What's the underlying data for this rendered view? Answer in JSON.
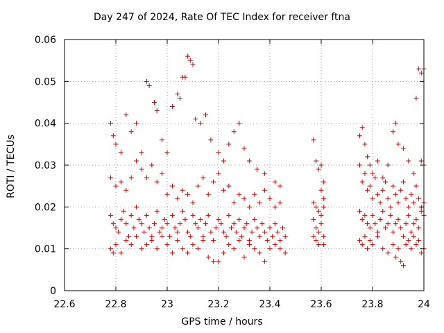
{
  "chart_data": {
    "type": "scatter",
    "title": "Day 247 of 2024, Rate Of TEC Index for receiver ftna",
    "xlabel": "GPS time / hours",
    "ylabel": "ROTI / TECUs",
    "xlim": [
      22.6,
      24.0
    ],
    "ylim": [
      0,
      0.06
    ],
    "xticks": [
      "22.6",
      "22.8",
      "23",
      "23.2",
      "23.4",
      "23.6",
      "23.8",
      "24"
    ],
    "yticks": [
      "0",
      "0.01",
      "0.02",
      "0.03",
      "0.04",
      "0.05",
      "0.06"
    ],
    "grid": true,
    "marker": "+",
    "color": "#cc0000",
    "series": [
      {
        "name": "",
        "points": [
          [
            22.78,
            0.04
          ],
          [
            22.79,
            0.037
          ],
          [
            22.8,
            0.035
          ],
          [
            22.82,
            0.033
          ],
          [
            22.84,
            0.042
          ],
          [
            22.86,
            0.038
          ],
          [
            22.88,
            0.04
          ],
          [
            22.9,
            0.033
          ],
          [
            22.92,
            0.05
          ],
          [
            22.93,
            0.049
          ],
          [
            22.95,
            0.045
          ],
          [
            22.96,
            0.043
          ],
          [
            22.98,
            0.036
          ],
          [
            23.0,
            0.033
          ],
          [
            23.02,
            0.044
          ],
          [
            23.04,
            0.047
          ],
          [
            23.05,
            0.046
          ],
          [
            23.06,
            0.051
          ],
          [
            23.07,
            0.051
          ],
          [
            23.08,
            0.056
          ],
          [
            23.09,
            0.055
          ],
          [
            23.1,
            0.054
          ],
          [
            23.11,
            0.041
          ],
          [
            23.13,
            0.04
          ],
          [
            23.15,
            0.042
          ],
          [
            23.17,
            0.036
          ],
          [
            23.2,
            0.033
          ],
          [
            23.22,
            0.031
          ],
          [
            23.24,
            0.035
          ],
          [
            23.26,
            0.038
          ],
          [
            23.28,
            0.04
          ],
          [
            23.3,
            0.034
          ],
          [
            23.32,
            0.031
          ],
          [
            23.35,
            0.029
          ],
          [
            23.38,
            0.028
          ],
          [
            23.42,
            0.026
          ],
          [
            23.44,
            0.025
          ],
          [
            22.78,
            0.027
          ],
          [
            22.8,
            0.025
          ],
          [
            22.82,
            0.026
          ],
          [
            22.84,
            0.024
          ],
          [
            22.86,
            0.027
          ],
          [
            22.88,
            0.031
          ],
          [
            22.9,
            0.029
          ],
          [
            22.92,
            0.027
          ],
          [
            22.94,
            0.03
          ],
          [
            22.96,
            0.026
          ],
          [
            22.98,
            0.028
          ],
          [
            23.0,
            0.023
          ],
          [
            23.02,
            0.025
          ],
          [
            23.04,
            0.022
          ],
          [
            23.06,
            0.024
          ],
          [
            23.08,
            0.023
          ],
          [
            23.1,
            0.021
          ],
          [
            23.12,
            0.025
          ],
          [
            23.14,
            0.027
          ],
          [
            23.16,
            0.023
          ],
          [
            23.18,
            0.026
          ],
          [
            23.2,
            0.028
          ],
          [
            23.22,
            0.024
          ],
          [
            23.24,
            0.025
          ],
          [
            23.26,
            0.021
          ],
          [
            23.28,
            0.023
          ],
          [
            23.3,
            0.022
          ],
          [
            23.32,
            0.02
          ],
          [
            23.34,
            0.023
          ],
          [
            23.36,
            0.021
          ],
          [
            23.38,
            0.024
          ],
          [
            23.4,
            0.022
          ],
          [
            23.42,
            0.02
          ],
          [
            23.44,
            0.021
          ],
          [
            22.78,
            0.018
          ],
          [
            22.79,
            0.016
          ],
          [
            22.8,
            0.015
          ],
          [
            22.81,
            0.014
          ],
          [
            22.82,
            0.017
          ],
          [
            22.83,
            0.019
          ],
          [
            22.84,
            0.016
          ],
          [
            22.85,
            0.013
          ],
          [
            22.86,
            0.018
          ],
          [
            22.87,
            0.015
          ],
          [
            22.88,
            0.02
          ],
          [
            22.89,
            0.017
          ],
          [
            22.9,
            0.016
          ],
          [
            22.91,
            0.014
          ],
          [
            22.92,
            0.018
          ],
          [
            22.93,
            0.015
          ],
          [
            22.94,
            0.013
          ],
          [
            22.95,
            0.016
          ],
          [
            22.96,
            0.019
          ],
          [
            22.97,
            0.014
          ],
          [
            22.98,
            0.015
          ],
          [
            22.99,
            0.017
          ],
          [
            23.0,
            0.016
          ],
          [
            23.01,
            0.013
          ],
          [
            23.02,
            0.018
          ],
          [
            23.03,
            0.015
          ],
          [
            23.04,
            0.014
          ],
          [
            23.05,
            0.016
          ],
          [
            23.06,
            0.019
          ],
          [
            23.07,
            0.017
          ],
          [
            23.08,
            0.014
          ],
          [
            23.09,
            0.013
          ],
          [
            23.1,
            0.018
          ],
          [
            23.11,
            0.016
          ],
          [
            23.12,
            0.015
          ],
          [
            23.13,
            0.017
          ],
          [
            23.14,
            0.013
          ],
          [
            23.15,
            0.016
          ],
          [
            23.16,
            0.018
          ],
          [
            23.17,
            0.014
          ],
          [
            23.18,
            0.012
          ],
          [
            23.19,
            0.015
          ],
          [
            23.2,
            0.017
          ],
          [
            23.21,
            0.016
          ],
          [
            23.22,
            0.014
          ],
          [
            23.23,
            0.013
          ],
          [
            23.24,
            0.018
          ],
          [
            23.25,
            0.015
          ],
          [
            23.26,
            0.016
          ],
          [
            23.27,
            0.014
          ],
          [
            23.28,
            0.017
          ],
          [
            23.29,
            0.013
          ],
          [
            23.3,
            0.015
          ],
          [
            23.31,
            0.016
          ],
          [
            23.32,
            0.012
          ],
          [
            23.33,
            0.014
          ],
          [
            23.34,
            0.017
          ],
          [
            23.35,
            0.015
          ],
          [
            23.36,
            0.013
          ],
          [
            23.37,
            0.016
          ],
          [
            23.38,
            0.014
          ],
          [
            23.39,
            0.012
          ],
          [
            23.4,
            0.015
          ],
          [
            23.41,
            0.013
          ],
          [
            23.42,
            0.016
          ],
          [
            23.43,
            0.014
          ],
          [
            23.44,
            0.012
          ],
          [
            23.45,
            0.015
          ],
          [
            23.46,
            0.013
          ],
          [
            22.78,
            0.01
          ],
          [
            22.79,
            0.009
          ],
          [
            22.8,
            0.011
          ],
          [
            22.82,
            0.009
          ],
          [
            22.84,
            0.012
          ],
          [
            22.86,
            0.011
          ],
          [
            22.88,
            0.013
          ],
          [
            22.9,
            0.01
          ],
          [
            22.92,
            0.011
          ],
          [
            22.94,
            0.012
          ],
          [
            22.96,
            0.01
          ],
          [
            22.98,
            0.013
          ],
          [
            23.0,
            0.011
          ],
          [
            23.02,
            0.009
          ],
          [
            23.04,
            0.012
          ],
          [
            23.06,
            0.01
          ],
          [
            23.08,
            0.009
          ],
          [
            23.1,
            0.011
          ],
          [
            23.12,
            0.01
          ],
          [
            23.14,
            0.012
          ],
          [
            23.16,
            0.008
          ],
          [
            23.18,
            0.007
          ],
          [
            23.2,
            0.007
          ],
          [
            23.22,
            0.009
          ],
          [
            23.24,
            0.011
          ],
          [
            23.26,
            0.01
          ],
          [
            23.28,
            0.012
          ],
          [
            23.3,
            0.008
          ],
          [
            23.32,
            0.011
          ],
          [
            23.34,
            0.01
          ],
          [
            23.36,
            0.009
          ],
          [
            23.38,
            0.007
          ],
          [
            23.4,
            0.01
          ],
          [
            23.42,
            0.011
          ],
          [
            23.44,
            0.01
          ],
          [
            23.46,
            0.009
          ],
          [
            23.57,
            0.036
          ],
          [
            23.58,
            0.031
          ],
          [
            23.59,
            0.029
          ],
          [
            23.6,
            0.03
          ],
          [
            23.61,
            0.026
          ],
          [
            23.6,
            0.024
          ],
          [
            23.61,
            0.022
          ],
          [
            23.57,
            0.021
          ],
          [
            23.58,
            0.02
          ],
          [
            23.59,
            0.019
          ],
          [
            23.6,
            0.018
          ],
          [
            23.61,
            0.02
          ],
          [
            23.57,
            0.017
          ],
          [
            23.58,
            0.015
          ],
          [
            23.59,
            0.014
          ],
          [
            23.6,
            0.016
          ],
          [
            23.61,
            0.013
          ],
          [
            23.57,
            0.013
          ],
          [
            23.58,
            0.012
          ],
          [
            23.59,
            0.011
          ],
          [
            23.61,
            0.011
          ],
          [
            23.75,
            0.037
          ],
          [
            23.76,
            0.039
          ],
          [
            23.77,
            0.035
          ],
          [
            23.78,
            0.032
          ],
          [
            23.79,
            0.03
          ],
          [
            23.8,
            0.028
          ],
          [
            23.82,
            0.031
          ],
          [
            23.84,
            0.027
          ],
          [
            23.86,
            0.03
          ],
          [
            23.88,
            0.038
          ],
          [
            23.89,
            0.04
          ],
          [
            23.9,
            0.035
          ],
          [
            23.92,
            0.034
          ],
          [
            23.94,
            0.031
          ],
          [
            23.96,
            0.028
          ],
          [
            23.97,
            0.046
          ],
          [
            23.98,
            0.053
          ],
          [
            23.99,
            0.052
          ],
          [
            24.0,
            0.053
          ],
          [
            23.99,
            0.031
          ],
          [
            24.0,
            0.03
          ],
          [
            23.75,
            0.03
          ],
          [
            23.76,
            0.026
          ],
          [
            23.77,
            0.028
          ],
          [
            23.78,
            0.024
          ],
          [
            23.79,
            0.025
          ],
          [
            23.8,
            0.022
          ],
          [
            23.81,
            0.027
          ],
          [
            23.82,
            0.023
          ],
          [
            23.83,
            0.021
          ],
          [
            23.84,
            0.024
          ],
          [
            23.85,
            0.026
          ],
          [
            23.86,
            0.022
          ],
          [
            23.87,
            0.02
          ],
          [
            23.88,
            0.025
          ],
          [
            23.89,
            0.023
          ],
          [
            23.9,
            0.021
          ],
          [
            23.91,
            0.024
          ],
          [
            23.92,
            0.026
          ],
          [
            23.93,
            0.022
          ],
          [
            23.94,
            0.02
          ],
          [
            23.95,
            0.023
          ],
          [
            23.96,
            0.021
          ],
          [
            23.97,
            0.025
          ],
          [
            23.98,
            0.022
          ],
          [
            23.99,
            0.02
          ],
          [
            24.0,
            0.021
          ],
          [
            23.75,
            0.019
          ],
          [
            23.76,
            0.017
          ],
          [
            23.77,
            0.018
          ],
          [
            23.78,
            0.016
          ],
          [
            23.79,
            0.015
          ],
          [
            23.8,
            0.018
          ],
          [
            23.81,
            0.016
          ],
          [
            23.82,
            0.014
          ],
          [
            23.83,
            0.017
          ],
          [
            23.84,
            0.019
          ],
          [
            23.85,
            0.015
          ],
          [
            23.86,
            0.016
          ],
          [
            23.87,
            0.018
          ],
          [
            23.88,
            0.014
          ],
          [
            23.89,
            0.016
          ],
          [
            23.9,
            0.017
          ],
          [
            23.91,
            0.015
          ],
          [
            23.92,
            0.013
          ],
          [
            23.93,
            0.016
          ],
          [
            23.94,
            0.018
          ],
          [
            23.95,
            0.014
          ],
          [
            23.96,
            0.016
          ],
          [
            23.97,
            0.017
          ],
          [
            23.98,
            0.015
          ],
          [
            23.99,
            0.019
          ],
          [
            24.0,
            0.018
          ],
          [
            23.75,
            0.012
          ],
          [
            23.76,
            0.011
          ],
          [
            23.77,
            0.013
          ],
          [
            23.78,
            0.01
          ],
          [
            23.79,
            0.012
          ],
          [
            23.8,
            0.011
          ],
          [
            23.82,
            0.013
          ],
          [
            23.84,
            0.01
          ],
          [
            23.86,
            0.009
          ],
          [
            23.88,
            0.011
          ],
          [
            23.89,
            0.008
          ],
          [
            23.9,
            0.01
          ],
          [
            23.91,
            0.007
          ],
          [
            23.92,
            0.006
          ],
          [
            23.93,
            0.011
          ],
          [
            23.94,
            0.012
          ],
          [
            23.95,
            0.01
          ],
          [
            23.96,
            0.013
          ],
          [
            23.97,
            0.011
          ],
          [
            23.98,
            0.012
          ],
          [
            23.99,
            0.009
          ],
          [
            24.0,
            0.01
          ]
        ]
      }
    ]
  }
}
